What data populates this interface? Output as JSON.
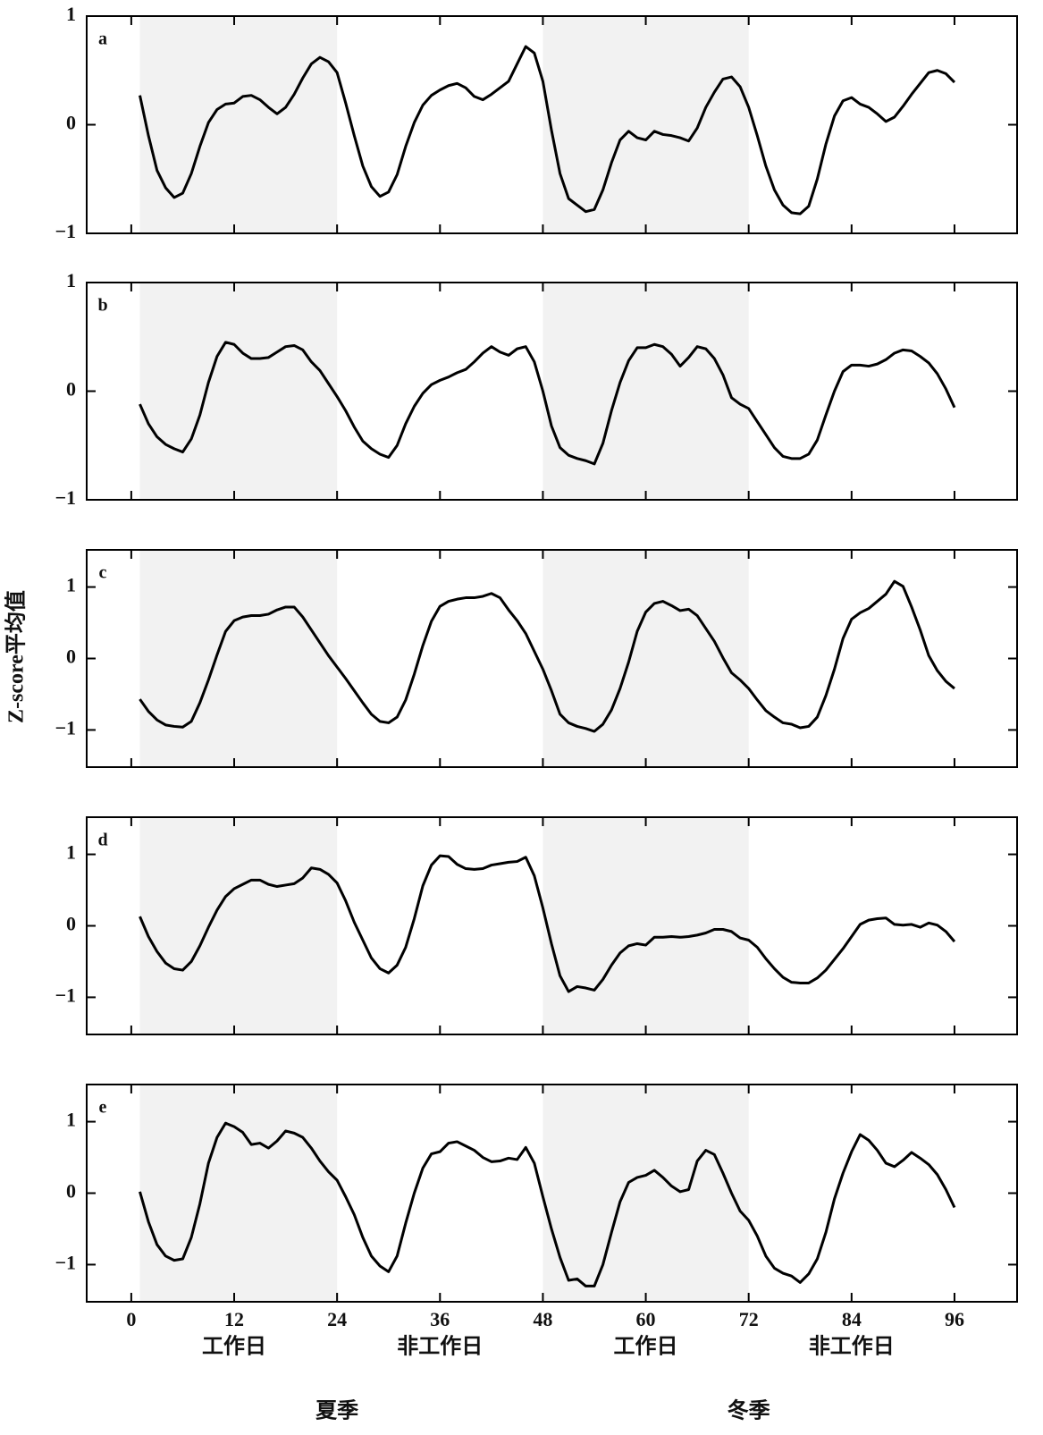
{
  "chart_data": [
    {
      "type": "line",
      "label": "a",
      "color": "#000000",
      "shade_color": "#f2f2f2",
      "shaded": [
        [
          1,
          24
        ],
        [
          48,
          72
        ]
      ],
      "xlim": [
        -5.2,
        103.3
      ],
      "ylim": [
        -1,
        1
      ],
      "xticks": [
        0,
        12,
        24,
        36,
        48,
        60,
        72,
        84,
        96
      ],
      "yticks": [
        {
          "value": -1,
          "label": "−1"
        },
        0,
        1
      ],
      "xtick_labels": false,
      "x": [
        1,
        2,
        3,
        4,
        5,
        6,
        7,
        8,
        9,
        10,
        11,
        12,
        13,
        14,
        15,
        16,
        17,
        18,
        19,
        20,
        21,
        22,
        23,
        24,
        25,
        26,
        27,
        28,
        29,
        30,
        31,
        32,
        33,
        34,
        35,
        36,
        37,
        38,
        39,
        40,
        41,
        42,
        43,
        44,
        45,
        46,
        47,
        48,
        49,
        50,
        51,
        52,
        53,
        54,
        55,
        56,
        57,
        58,
        59,
        60,
        61,
        62,
        63,
        64,
        65,
        66,
        67,
        68,
        69,
        70,
        71,
        72,
        73,
        74,
        75,
        76,
        77,
        78,
        79,
        80,
        81,
        82,
        83,
        84,
        85,
        86,
        87,
        88,
        89,
        90,
        91,
        92,
        93,
        94,
        95,
        96
      ],
      "values": [
        0.27,
        -0.1,
        -0.42,
        -0.58,
        -0.67,
        -0.63,
        -0.45,
        -0.2,
        0.02,
        0.14,
        0.19,
        0.2,
        0.26,
        0.27,
        0.23,
        0.16,
        0.1,
        0.16,
        0.28,
        0.43,
        0.56,
        0.62,
        0.58,
        0.48,
        0.2,
        -0.1,
        -0.38,
        -0.57,
        -0.66,
        -0.62,
        -0.46,
        -0.2,
        0.02,
        0.18,
        0.27,
        0.32,
        0.36,
        0.38,
        0.34,
        0.26,
        0.23,
        0.28,
        0.34,
        0.4,
        0.56,
        0.72,
        0.66,
        0.4,
        -0.05,
        -0.45,
        -0.68,
        -0.74,
        -0.8,
        -0.78,
        -0.6,
        -0.35,
        -0.14,
        -0.06,
        -0.12,
        -0.14,
        -0.06,
        -0.09,
        -0.1,
        -0.12,
        -0.15,
        -0.03,
        0.16,
        0.3,
        0.42,
        0.44,
        0.35,
        0.16,
        -0.1,
        -0.38,
        -0.6,
        -0.74,
        -0.81,
        -0.82,
        -0.75,
        -0.5,
        -0.18,
        0.08,
        0.22,
        0.25,
        0.19,
        0.16,
        0.1,
        0.03,
        0.07,
        0.17,
        0.28,
        0.38,
        0.48,
        0.5,
        0.47,
        0.39
      ]
    },
    {
      "type": "line",
      "label": "b",
      "color": "#000000",
      "shade_color": "#f2f2f2",
      "shaded": [
        [
          1,
          24
        ],
        [
          48,
          72
        ]
      ],
      "xlim": [
        -5.2,
        103.3
      ],
      "ylim": [
        -1,
        1
      ],
      "xticks": [
        0,
        12,
        24,
        36,
        48,
        60,
        72,
        84,
        96
      ],
      "yticks": [
        {
          "value": -1,
          "label": "−1"
        },
        0,
        1
      ],
      "xtick_labels": false,
      "x": [
        1,
        2,
        3,
        4,
        5,
        6,
        7,
        8,
        9,
        10,
        11,
        12,
        13,
        14,
        15,
        16,
        17,
        18,
        19,
        20,
        21,
        22,
        23,
        24,
        25,
        26,
        27,
        28,
        29,
        30,
        31,
        32,
        33,
        34,
        35,
        36,
        37,
        38,
        39,
        40,
        41,
        42,
        43,
        44,
        45,
        46,
        47,
        48,
        49,
        50,
        51,
        52,
        53,
        54,
        55,
        56,
        57,
        58,
        59,
        60,
        61,
        62,
        63,
        64,
        65,
        66,
        67,
        68,
        69,
        70,
        71,
        72,
        73,
        74,
        75,
        76,
        77,
        78,
        79,
        80,
        81,
        82,
        83,
        84,
        85,
        86,
        87,
        88,
        89,
        90,
        91,
        92,
        93,
        94,
        95,
        96
      ],
      "values": [
        -0.12,
        -0.3,
        -0.42,
        -0.49,
        -0.53,
        -0.56,
        -0.44,
        -0.22,
        0.08,
        0.32,
        0.45,
        0.43,
        0.35,
        0.3,
        0.3,
        0.31,
        0.36,
        0.41,
        0.42,
        0.38,
        0.27,
        0.19,
        0.07,
        -0.05,
        -0.18,
        -0.33,
        -0.46,
        -0.53,
        -0.58,
        -0.61,
        -0.5,
        -0.3,
        -0.14,
        -0.02,
        0.06,
        0.1,
        0.13,
        0.17,
        0.2,
        0.27,
        0.35,
        0.41,
        0.36,
        0.33,
        0.39,
        0.41,
        0.27,
        0.0,
        -0.32,
        -0.52,
        -0.59,
        -0.62,
        -0.64,
        -0.67,
        -0.48,
        -0.18,
        0.08,
        0.28,
        0.4,
        0.4,
        0.43,
        0.41,
        0.34,
        0.23,
        0.31,
        0.41,
        0.39,
        0.3,
        0.15,
        -0.06,
        -0.12,
        -0.16,
        -0.28,
        -0.4,
        -0.52,
        -0.6,
        -0.62,
        -0.62,
        -0.58,
        -0.45,
        -0.22,
        0.0,
        0.18,
        0.24,
        0.24,
        0.23,
        0.25,
        0.29,
        0.35,
        0.38,
        0.37,
        0.32,
        0.26,
        0.16,
        0.02,
        -0.15
      ]
    },
    {
      "type": "line",
      "label": "c",
      "ylabel": "Z-score平均值",
      "color": "#000000",
      "shade_color": "#f2f2f2",
      "shaded": [
        [
          1,
          24
        ],
        [
          48,
          72
        ]
      ],
      "xlim": [
        -5.2,
        103.3
      ],
      "ylim": [
        -1.52,
        1.52
      ],
      "xticks": [
        0,
        12,
        24,
        36,
        48,
        60,
        72,
        84,
        96
      ],
      "yticks": [
        {
          "value": -1,
          "label": "−1"
        },
        0,
        1
      ],
      "xtick_labels": false,
      "x": [
        1,
        2,
        3,
        4,
        5,
        6,
        7,
        8,
        9,
        10,
        11,
        12,
        13,
        14,
        15,
        16,
        17,
        18,
        19,
        20,
        21,
        22,
        23,
        24,
        25,
        26,
        27,
        28,
        29,
        30,
        31,
        32,
        33,
        34,
        35,
        36,
        37,
        38,
        39,
        40,
        41,
        42,
        43,
        44,
        45,
        46,
        47,
        48,
        49,
        50,
        51,
        52,
        53,
        54,
        55,
        56,
        57,
        58,
        59,
        60,
        61,
        62,
        63,
        64,
        65,
        66,
        67,
        68,
        69,
        70,
        71,
        72,
        73,
        74,
        75,
        76,
        77,
        78,
        79,
        80,
        81,
        82,
        83,
        84,
        85,
        86,
        87,
        88,
        89,
        90,
        91,
        92,
        93,
        94,
        95,
        96
      ],
      "values": [
        -0.57,
        -0.74,
        -0.86,
        -0.93,
        -0.95,
        -0.96,
        -0.88,
        -0.62,
        -0.3,
        0.05,
        0.38,
        0.53,
        0.58,
        0.6,
        0.6,
        0.62,
        0.68,
        0.72,
        0.72,
        0.58,
        0.4,
        0.22,
        0.04,
        -0.12,
        -0.28,
        -0.45,
        -0.62,
        -0.78,
        -0.88,
        -0.9,
        -0.82,
        -0.58,
        -0.22,
        0.18,
        0.52,
        0.73,
        0.8,
        0.83,
        0.85,
        0.85,
        0.87,
        0.91,
        0.85,
        0.68,
        0.53,
        0.35,
        0.1,
        -0.15,
        -0.45,
        -0.78,
        -0.9,
        -0.95,
        -0.98,
        -1.02,
        -0.92,
        -0.72,
        -0.42,
        -0.05,
        0.38,
        0.65,
        0.77,
        0.8,
        0.74,
        0.67,
        0.69,
        0.6,
        0.42,
        0.24,
        0.01,
        -0.2,
        -0.3,
        -0.42,
        -0.58,
        -0.73,
        -0.82,
        -0.9,
        -0.92,
        -0.97,
        -0.95,
        -0.82,
        -0.52,
        -0.15,
        0.28,
        0.55,
        0.64,
        0.7,
        0.8,
        0.9,
        1.08,
        1.01,
        0.72,
        0.4,
        0.04,
        -0.17,
        -0.32,
        -0.42
      ]
    },
    {
      "type": "line",
      "label": "d",
      "color": "#000000",
      "shade_color": "#f2f2f2",
      "shaded": [
        [
          1,
          24
        ],
        [
          48,
          72
        ]
      ],
      "xlim": [
        -5.2,
        103.3
      ],
      "ylim": [
        -1.52,
        1.52
      ],
      "xticks": [
        0,
        12,
        24,
        36,
        48,
        60,
        72,
        84,
        96
      ],
      "yticks": [
        {
          "value": -1,
          "label": "−1"
        },
        0,
        1
      ],
      "xtick_labels": false,
      "x": [
        1,
        2,
        3,
        4,
        5,
        6,
        7,
        8,
        9,
        10,
        11,
        12,
        13,
        14,
        15,
        16,
        17,
        18,
        19,
        20,
        21,
        22,
        23,
        24,
        25,
        26,
        27,
        28,
        29,
        30,
        31,
        32,
        33,
        34,
        35,
        36,
        37,
        38,
        39,
        40,
        41,
        42,
        43,
        44,
        45,
        46,
        47,
        48,
        49,
        50,
        51,
        52,
        53,
        54,
        55,
        56,
        57,
        58,
        59,
        60,
        61,
        62,
        63,
        64,
        65,
        66,
        67,
        68,
        69,
        70,
        71,
        72,
        73,
        74,
        75,
        76,
        77,
        78,
        79,
        80,
        81,
        82,
        83,
        84,
        85,
        86,
        87,
        88,
        89,
        90,
        91,
        92,
        93,
        94,
        95,
        96
      ],
      "values": [
        0.13,
        -0.15,
        -0.36,
        -0.52,
        -0.6,
        -0.62,
        -0.5,
        -0.28,
        -0.02,
        0.22,
        0.41,
        0.52,
        0.58,
        0.64,
        0.64,
        0.58,
        0.55,
        0.57,
        0.59,
        0.67,
        0.81,
        0.79,
        0.72,
        0.6,
        0.35,
        0.05,
        -0.2,
        -0.45,
        -0.6,
        -0.66,
        -0.55,
        -0.3,
        0.1,
        0.56,
        0.85,
        0.98,
        0.97,
        0.86,
        0.8,
        0.79,
        0.8,
        0.85,
        0.87,
        0.89,
        0.9,
        0.96,
        0.7,
        0.25,
        -0.25,
        -0.7,
        -0.92,
        -0.85,
        -0.87,
        -0.9,
        -0.75,
        -0.55,
        -0.38,
        -0.28,
        -0.25,
        -0.27,
        -0.16,
        -0.16,
        -0.15,
        -0.16,
        -0.15,
        -0.13,
        -0.1,
        -0.05,
        -0.05,
        -0.08,
        -0.17,
        -0.2,
        -0.3,
        -0.46,
        -0.6,
        -0.72,
        -0.79,
        -0.8,
        -0.8,
        -0.73,
        -0.62,
        -0.47,
        -0.32,
        -0.15,
        0.02,
        0.08,
        0.1,
        0.11,
        0.02,
        0.01,
        0.02,
        -0.02,
        0.04,
        0.01,
        -0.08,
        -0.22
      ]
    },
    {
      "type": "line",
      "label": "e",
      "color": "#000000",
      "shade_color": "#f2f2f2",
      "shaded": [
        [
          1,
          24
        ],
        [
          48,
          72
        ]
      ],
      "xlim": [
        -5.2,
        103.3
      ],
      "ylim": [
        -1.52,
        1.52
      ],
      "xticks": [
        0,
        12,
        24,
        36,
        48,
        60,
        72,
        84,
        96
      ],
      "yticks": [
        {
          "value": -1,
          "label": "−1"
        },
        0,
        1
      ],
      "xtick_labels": true,
      "period_labels": [
        "工作日",
        "非工作日",
        "工作日",
        "非工作日"
      ],
      "season_labels": [
        "夏季",
        "冬季"
      ],
      "x": [
        1,
        2,
        3,
        4,
        5,
        6,
        7,
        8,
        9,
        10,
        11,
        12,
        13,
        14,
        15,
        16,
        17,
        18,
        19,
        20,
        21,
        22,
        23,
        24,
        25,
        26,
        27,
        28,
        29,
        30,
        31,
        32,
        33,
        34,
        35,
        36,
        37,
        38,
        39,
        40,
        41,
        42,
        43,
        44,
        45,
        46,
        47,
        48,
        49,
        50,
        51,
        52,
        53,
        54,
        55,
        56,
        57,
        58,
        59,
        60,
        61,
        62,
        63,
        64,
        65,
        66,
        67,
        68,
        69,
        70,
        71,
        72,
        73,
        74,
        75,
        76,
        77,
        78,
        79,
        80,
        81,
        82,
        83,
        84,
        85,
        86,
        87,
        88,
        89,
        90,
        91,
        92,
        93,
        94,
        95,
        96
      ],
      "values": [
        0.02,
        -0.4,
        -0.72,
        -0.88,
        -0.94,
        -0.92,
        -0.62,
        -0.15,
        0.42,
        0.78,
        0.98,
        0.93,
        0.85,
        0.68,
        0.7,
        0.63,
        0.73,
        0.87,
        0.84,
        0.78,
        0.63,
        0.45,
        0.3,
        0.18,
        -0.05,
        -0.3,
        -0.62,
        -0.88,
        -1.02,
        -1.1,
        -0.88,
        -0.42,
        0.0,
        0.35,
        0.55,
        0.58,
        0.7,
        0.72,
        0.66,
        0.6,
        0.5,
        0.44,
        0.45,
        0.49,
        0.47,
        0.64,
        0.42,
        -0.05,
        -0.5,
        -0.9,
        -1.22,
        -1.2,
        -1.3,
        -1.3,
        -1.0,
        -0.55,
        -0.12,
        0.15,
        0.22,
        0.25,
        0.32,
        0.22,
        0.1,
        0.02,
        0.05,
        0.45,
        0.6,
        0.54,
        0.28,
        0.0,
        -0.25,
        -0.38,
        -0.6,
        -0.88,
        -1.05,
        -1.12,
        -1.16,
        -1.25,
        -1.13,
        -0.92,
        -0.55,
        -0.08,
        0.28,
        0.58,
        0.82,
        0.74,
        0.6,
        0.42,
        0.37,
        0.46,
        0.57,
        0.49,
        0.4,
        0.26,
        0.05,
        -0.2
      ]
    }
  ]
}
